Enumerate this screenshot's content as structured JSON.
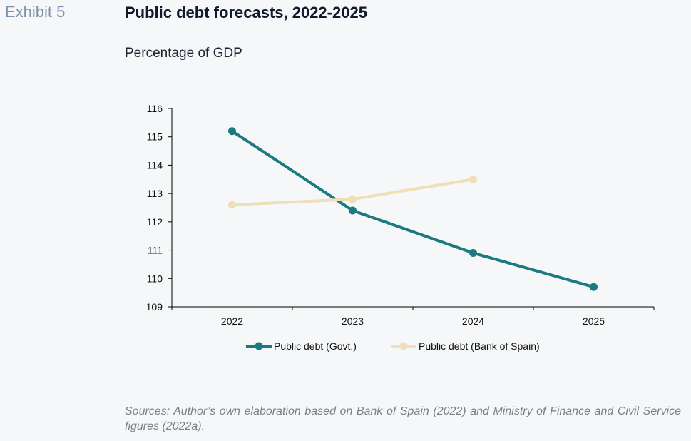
{
  "header": {
    "exhibit": "Exhibit 5",
    "title": "Public debt forecasts, 2022-2025",
    "subtitle": "Percentage of GDP"
  },
  "footer": {
    "sources": "Sources: Author’s own elaboration based on Bank of Spain (2022) and Ministry of Finance and Civil Service figures (2022a)."
  },
  "colors": {
    "govt": "#1b7a80",
    "bank": "#efdfb8",
    "axis": "#000000"
  },
  "chart_data": {
    "type": "line",
    "title": "Public debt forecasts, 2022-2025",
    "subtitle": "Percentage of GDP",
    "categories": [
      "2022",
      "2023",
      "2024",
      "2025"
    ],
    "ylim": [
      109,
      116
    ],
    "yticks": [
      109,
      110,
      111,
      112,
      113,
      114,
      115,
      116
    ],
    "grid": false,
    "legend_position": "bottom",
    "series": [
      {
        "name": "Public debt (Govt.)",
        "values": [
          115.2,
          112.4,
          110.9,
          109.7
        ]
      },
      {
        "name": "Public debt (Bank of Spain)",
        "values": [
          112.6,
          112.8,
          113.5,
          null
        ]
      }
    ]
  }
}
